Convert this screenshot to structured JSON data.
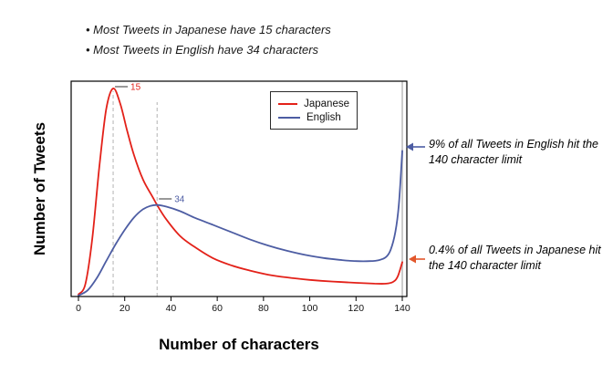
{
  "header_bullets": [
    "• Most Tweets in Japanese have 15 characters",
    "• Most Tweets in English have 34 characters"
  ],
  "annotations": {
    "english_limit": "9% of all Tweets in English hit the 140 character limit",
    "japanese_limit": "0.4% of all Tweets in Japanese hit the 140 character limit"
  },
  "chart_data": {
    "type": "line",
    "title": "",
    "xlabel": "Number of characters",
    "ylabel": "Number of Tweets",
    "xlim": [
      -4,
      146
    ],
    "ylim": [
      0,
      1.08
    ],
    "x_ticks": [
      0,
      20,
      40,
      60,
      80,
      100,
      120,
      140
    ],
    "y_ticks": [],
    "grid": false,
    "legend": {
      "position": "top-inside",
      "entries": [
        "Japanese",
        "English"
      ]
    },
    "reference_lines": {
      "dashed_x": [
        15,
        34
      ],
      "solid_x": 140
    },
    "series": [
      {
        "name": "Japanese",
        "color": "#e32119",
        "peak_x": 15,
        "peak_label": "15",
        "points": [
          [
            0,
            0.01
          ],
          [
            3,
            0.06
          ],
          [
            6,
            0.28
          ],
          [
            9,
            0.62
          ],
          [
            12,
            0.9
          ],
          [
            15,
            1.0
          ],
          [
            18,
            0.93
          ],
          [
            21,
            0.8
          ],
          [
            24,
            0.68
          ],
          [
            28,
            0.56
          ],
          [
            32,
            0.48
          ],
          [
            34,
            0.44
          ],
          [
            38,
            0.37
          ],
          [
            44,
            0.29
          ],
          [
            50,
            0.24
          ],
          [
            58,
            0.185
          ],
          [
            66,
            0.15
          ],
          [
            74,
            0.125
          ],
          [
            82,
            0.105
          ],
          [
            90,
            0.092
          ],
          [
            100,
            0.08
          ],
          [
            110,
            0.072
          ],
          [
            120,
            0.066
          ],
          [
            128,
            0.062
          ],
          [
            133,
            0.062
          ],
          [
            136,
            0.07
          ],
          [
            138,
            0.095
          ],
          [
            140,
            0.165
          ]
        ]
      },
      {
        "name": "English",
        "color": "#4d5da3",
        "peak_x": 34,
        "peak_label": "34",
        "points": [
          [
            0,
            0.005
          ],
          [
            4,
            0.03
          ],
          [
            8,
            0.09
          ],
          [
            12,
            0.17
          ],
          [
            16,
            0.25
          ],
          [
            20,
            0.32
          ],
          [
            24,
            0.38
          ],
          [
            28,
            0.42
          ],
          [
            31,
            0.435
          ],
          [
            34,
            0.44
          ],
          [
            38,
            0.432
          ],
          [
            44,
            0.41
          ],
          [
            50,
            0.38
          ],
          [
            58,
            0.345
          ],
          [
            66,
            0.31
          ],
          [
            74,
            0.275
          ],
          [
            82,
            0.245
          ],
          [
            90,
            0.22
          ],
          [
            98,
            0.2
          ],
          [
            106,
            0.185
          ],
          [
            114,
            0.175
          ],
          [
            120,
            0.17
          ],
          [
            126,
            0.17
          ],
          [
            130,
            0.175
          ],
          [
            133,
            0.19
          ],
          [
            135,
            0.225
          ],
          [
            137,
            0.31
          ],
          [
            138.5,
            0.44
          ],
          [
            140,
            0.7
          ]
        ]
      }
    ]
  },
  "colors": {
    "japanese_arrow": "#e2572b",
    "english_arrow": "#4d5da3",
    "dashed_line": "#b3b3b3",
    "limit_line": "#cccccc",
    "axis": "#000000"
  }
}
